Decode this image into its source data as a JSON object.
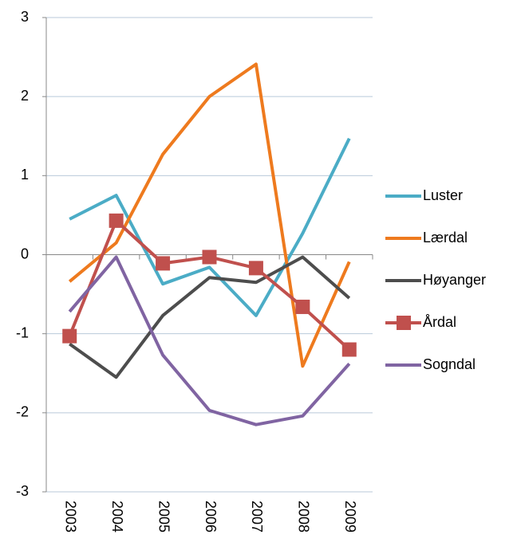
{
  "chart_data": {
    "type": "line",
    "categories": [
      "2003",
      "2004",
      "2005",
      "2006",
      "2007",
      "2008",
      "2009"
    ],
    "series": [
      {
        "name": "Luster",
        "color": "#4bacc6",
        "values": [
          0.45,
          0.75,
          -0.37,
          -0.16,
          -0.77,
          0.27,
          1.47
        ]
      },
      {
        "name": "Lærdal",
        "color": "#ee7a1e",
        "values": [
          -0.34,
          0.15,
          1.27,
          2.0,
          2.41,
          -1.41,
          -0.09
        ]
      },
      {
        "name": "Høyanger",
        "color": "#4d4d4d",
        "values": [
          -1.13,
          -1.55,
          -0.77,
          -0.29,
          -0.35,
          -0.03,
          -0.55
        ]
      },
      {
        "name": "Årdal",
        "color": "#c0504d",
        "marker": "square",
        "values": [
          -1.03,
          0.43,
          -0.11,
          -0.03,
          -0.17,
          -0.66,
          -1.2
        ]
      },
      {
        "name": "Sogndal",
        "color": "#8064a2",
        "values": [
          -0.72,
          -0.03,
          -1.27,
          -1.97,
          -2.15,
          -2.04,
          -1.38
        ]
      }
    ],
    "ylim": [
      -3,
      3
    ],
    "yticks": [
      -3,
      -2,
      -1,
      0,
      1,
      2,
      3
    ],
    "grid": true,
    "legend": "right"
  }
}
